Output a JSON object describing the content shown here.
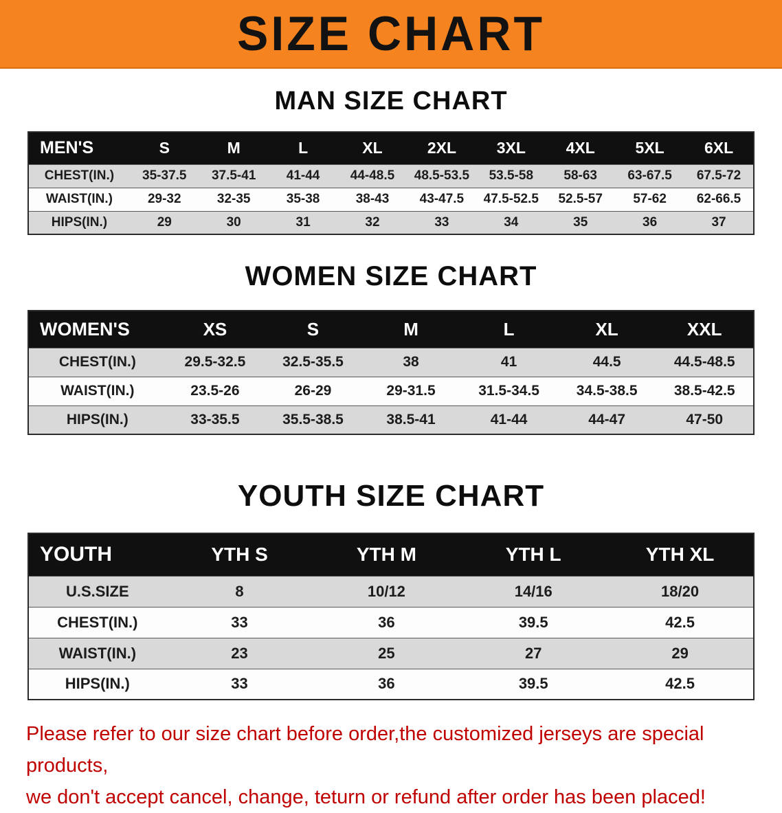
{
  "banner": {
    "title": "SIZE CHART"
  },
  "colors": {
    "banner_bg": "#F5831F",
    "table_header_bg": "#101010",
    "row_alt_bg": "#D9D9D9",
    "warning_text": "#C00000"
  },
  "sections": [
    {
      "heading": "MAN SIZE CHART",
      "table": {
        "header": [
          "MEN'S",
          "S",
          "M",
          "L",
          "XL",
          "2XL",
          "3XL",
          "4XL",
          "5XL",
          "6XL"
        ],
        "rows": [
          [
            "CHEST(IN.)",
            "35-37.5",
            "37.5-41",
            "41-44",
            "44-48.5",
            "48.5-53.5",
            "53.5-58",
            "58-63",
            "63-67.5",
            "67.5-72"
          ],
          [
            "WAIST(IN.)",
            "29-32",
            "32-35",
            "35-38",
            "38-43",
            "43-47.5",
            "47.5-52.5",
            "52.5-57",
            "57-62",
            "62-66.5"
          ],
          [
            "HIPS(IN.)",
            "29",
            "30",
            "31",
            "32",
            "33",
            "34",
            "35",
            "36",
            "37"
          ]
        ]
      }
    },
    {
      "heading": "WOMEN SIZE CHART",
      "table": {
        "header": [
          "WOMEN'S",
          "XS",
          "S",
          "M",
          "L",
          "XL",
          "XXL"
        ],
        "rows": [
          [
            "CHEST(IN.)",
            "29.5-32.5",
            "32.5-35.5",
            "38",
            "41",
            "44.5",
            "44.5-48.5"
          ],
          [
            "WAIST(IN.)",
            "23.5-26",
            "26-29",
            "29-31.5",
            "31.5-34.5",
            "34.5-38.5",
            "38.5-42.5"
          ],
          [
            "HIPS(IN.)",
            "33-35.5",
            "35.5-38.5",
            "38.5-41",
            "41-44",
            "44-47",
            "47-50"
          ]
        ]
      }
    },
    {
      "heading": "YOUTH SIZE CHART",
      "table": {
        "header": [
          "YOUTH",
          "YTH S",
          "YTH M",
          "YTH L",
          "YTH XL"
        ],
        "rows": [
          [
            "U.S.SIZE",
            "8",
            "10/12",
            "14/16",
            "18/20"
          ],
          [
            "CHEST(IN.)",
            "33",
            "36",
            "39.5",
            "42.5"
          ],
          [
            "WAIST(IN.)",
            "23",
            "25",
            "27",
            "29"
          ],
          [
            "HIPS(IN.)",
            "33",
            "36",
            "39.5",
            "42.5"
          ]
        ]
      }
    }
  ],
  "footer": {
    "line1": "Please refer to our size chart before order,the customized jerseys are special products,",
    "line2": "we don't accept cancel, change, teturn or refund after order has been placed!"
  }
}
